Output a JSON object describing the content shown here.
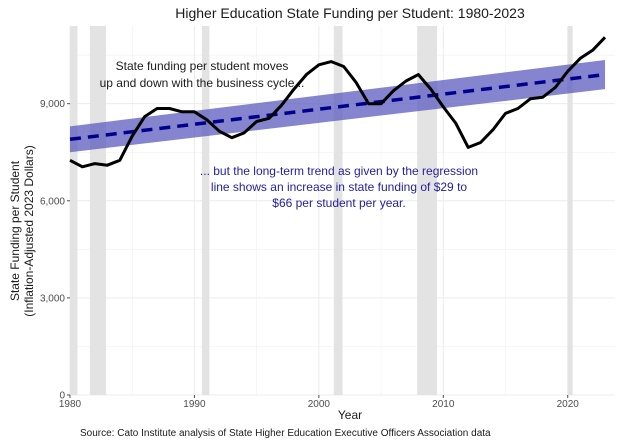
{
  "chart_data": {
    "type": "line",
    "title": "Higher Education State Funding per Student: 1980-2023",
    "xlabel": "Year",
    "ylabel_lines": [
      "State Funding per Student",
      "(Inflation-Adjusted 2023 Dollars)"
    ],
    "xlim": [
      1980,
      2023.8
    ],
    "ylim": [
      0,
      11400
    ],
    "x_ticks": [
      1980,
      1990,
      2000,
      2010,
      2020
    ],
    "y_ticks": [
      0,
      3000,
      6000,
      9000
    ],
    "y_tick_labels": [
      "0",
      "3,000",
      "6,000",
      "9,000"
    ],
    "recessions": [
      [
        1980.0,
        1980.6
      ],
      [
        1981.6,
        1982.9
      ],
      [
        1990.6,
        1991.2
      ],
      [
        2001.2,
        2001.9
      ],
      [
        2007.9,
        2009.5
      ],
      [
        2020.0,
        2020.4
      ]
    ],
    "series": [
      {
        "name": "State funding per student",
        "color": "#000000",
        "x": [
          1980,
          1981,
          1982,
          1983,
          1984,
          1985,
          1986,
          1987,
          1988,
          1989,
          1990,
          1991,
          1992,
          1993,
          1994,
          1995,
          1996,
          1997,
          1998,
          1999,
          2000,
          2001,
          2002,
          2003,
          2004,
          2005,
          2006,
          2007,
          2008,
          2009,
          2010,
          2011,
          2012,
          2013,
          2014,
          2015,
          2016,
          2017,
          2018,
          2019,
          2020,
          2021,
          2022,
          2023
        ],
        "values": [
          7250,
          7050,
          7150,
          7100,
          7250,
          8000,
          8600,
          8850,
          8850,
          8750,
          8750,
          8500,
          8150,
          7950,
          8100,
          8450,
          8550,
          8950,
          9450,
          9900,
          10200,
          10300,
          10150,
          9650,
          9000,
          9000,
          9400,
          9700,
          9900,
          9450,
          8900,
          8400,
          7650,
          7800,
          8200,
          8700,
          8850,
          9150,
          9200,
          9500,
          10000,
          10400,
          10650,
          11050
        ]
      },
      {
        "name": "Regression trend line",
        "color": "#00008b",
        "dashed": true,
        "x": [
          1980,
          2023
        ],
        "values": [
          7900,
          9900
        ],
        "band_low": [
          7500,
          9450
        ],
        "band_high": [
          8300,
          10350
        ]
      }
    ],
    "annotations": [
      {
        "id": "business-cycle",
        "lines": [
          "State funding per student moves",
          "up and down with the business cycle..."
        ]
      },
      {
        "id": "trend",
        "lines": [
          "... but the long-term trend as given by the regression",
          "line shows an increase in state funding of $29 to",
          "$66 per student per year."
        ]
      }
    ],
    "source": "Source: Cato Institute analysis of State Higher Education Executive Officers Association data",
    "colors": {
      "band": "#5b5bbf",
      "recession": "#e3e3e3",
      "grid": "#ececec",
      "annotation_trend": "#1f1f9e"
    }
  }
}
